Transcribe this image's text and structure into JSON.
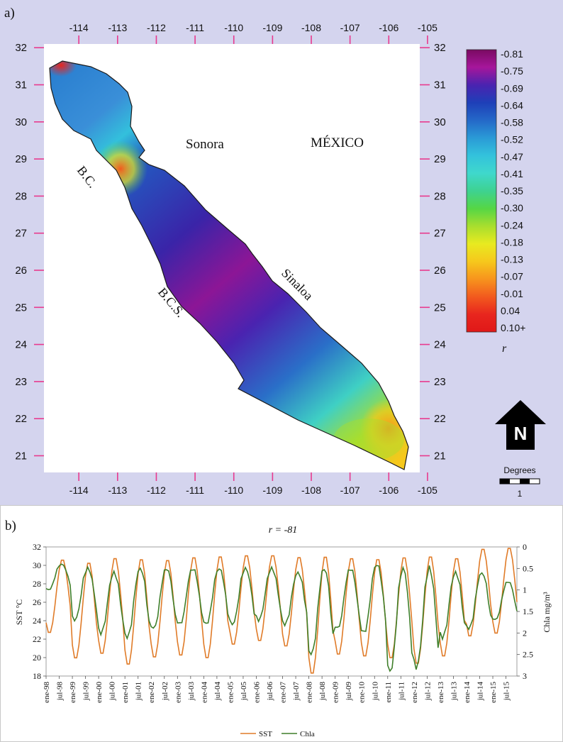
{
  "panel_a": {
    "label": "a)",
    "map_labels": {
      "sonora": "Sonora",
      "mexico": "MÉXICO",
      "bc": "B.C.",
      "bcs": "B.C.S.",
      "sinaloa": "Sinaloa"
    },
    "north_arrow": "N",
    "scale_bar": {
      "title": "Degrees",
      "value": "1"
    },
    "colors": {
      "background": "#d4d4ee",
      "tick": "#e83a8e",
      "coast": "#1a1a1a"
    }
  },
  "panel_b": {
    "label": "b)",
    "title": "r = -81"
  },
  "chart_data": [
    {
      "type": "heatmap",
      "title": "",
      "x_axis": {
        "ticks": [
          "-114",
          "-113",
          "-112",
          "-111",
          "-110",
          "-109",
          "-108",
          "-107",
          "-106",
          "-105"
        ],
        "range": [
          -114.9,
          -105.2
        ]
      },
      "y_axis": {
        "ticks": [
          "32",
          "31",
          "30",
          "29",
          "28",
          "27",
          "26",
          "25",
          "24",
          "23",
          "22",
          "21"
        ],
        "range": [
          20.55,
          32.1
        ]
      },
      "colorbar": {
        "label": "r",
        "labels": [
          "-0.81",
          "-0.75",
          "-0.69",
          "-0.64",
          "-0.58",
          "-0.52",
          "-0.47",
          "-0.41",
          "-0.35",
          "-0.30",
          "-0.24",
          "-0.18",
          "-0.13",
          "-0.07",
          "-0.01",
          "0.04",
          "0.10+"
        ],
        "stops": [
          "#7a0a62",
          "#a6169b",
          "#4a23b0",
          "#1e3fb8",
          "#2468c8",
          "#2a9ad6",
          "#33c2dc",
          "#3fd8cc",
          "#3ed291",
          "#55d645",
          "#a8de2e",
          "#e8ea20",
          "#f6c81c",
          "#f7941d",
          "#f25a1e",
          "#e8261e",
          "#e01818"
        ]
      },
      "legend": "right"
    },
    {
      "type": "line",
      "title": "r = -81",
      "x_axis": {
        "ticks": [
          "ene-98",
          "jul-98",
          "ene-99",
          "jul-99",
          "ene-00",
          "jul-00",
          "ene-01",
          "jul-01",
          "ene-02",
          "jul-02",
          "ene-03",
          "jul-03",
          "ene-04",
          "jul-04",
          "ene-05",
          "jul-05",
          "ene-06",
          "jul-06",
          "ene-07",
          "jul-07",
          "ene-08",
          "jul-08",
          "ene-09",
          "jul-09",
          "ene-10",
          "jul-10",
          "ene-11",
          "jul-11",
          "ene-12",
          "jul-12",
          "ene-13",
          "jul-13",
          "ene-14",
          "jul-14",
          "ene-15",
          "jul-15"
        ],
        "range": [
          "1998-01",
          "2015-12"
        ]
      },
      "y_left": {
        "label": "SST °C",
        "ticks": [
          "32",
          "30",
          "28",
          "26",
          "24",
          "22",
          "20",
          "18"
        ],
        "range": [
          18,
          32
        ]
      },
      "y_right": {
        "label": "Chla mg/m³",
        "ticks": [
          "0",
          "0.5",
          "1",
          "1.5",
          "2",
          "2.5",
          "3"
        ],
        "range": [
          0,
          3
        ],
        "inverted": true
      },
      "series": [
        {
          "name": "SST",
          "color": "#e07b28",
          "axis": "left",
          "annual_max": [
            30.7,
            30.4,
            30.9,
            30.8,
            30.7,
            31.0,
            31.1,
            31.2,
            31.2,
            31.0,
            31.1,
            30.9,
            30.8,
            31.0,
            31.1,
            30.9,
            31.9,
            32.0
          ],
          "annual_min": [
            22.6,
            19.8,
            20.3,
            19.1,
            19.9,
            20.1,
            19.8,
            21.3,
            21.7,
            21.1,
            18.1,
            20.2,
            20.0,
            19.8,
            19.2,
            20.0,
            22.2,
            22.5
          ]
        },
        {
          "name": "Chla",
          "color": "#3f7f2a",
          "axis": "right",
          "annual_min": [
            0.4,
            0.5,
            0.6,
            0.5,
            0.5,
            0.5,
            0.5,
            0.5,
            0.5,
            0.6,
            0.5,
            0.5,
            0.4,
            0.5,
            0.5,
            0.6,
            0.6,
            0.8
          ],
          "annual_max": [
            1.0,
            1.7,
            2.0,
            2.1,
            1.9,
            1.8,
            1.8,
            1.8,
            1.7,
            1.8,
            2.5,
            1.9,
            2.0,
            2.9,
            2.8,
            2.1,
            1.9,
            1.7
          ]
        }
      ],
      "legend": "bottom"
    }
  ]
}
